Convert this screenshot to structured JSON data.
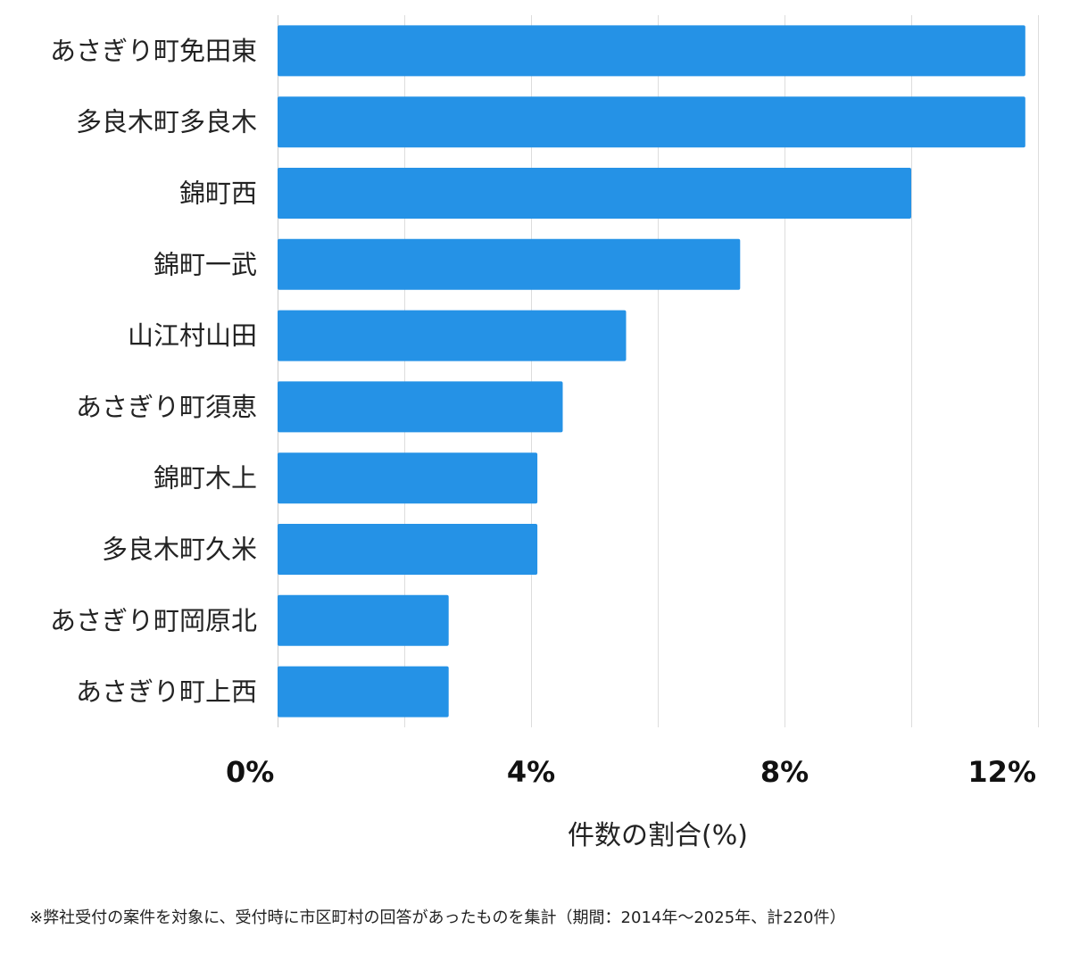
{
  "chart_data": {
    "type": "bar",
    "orientation": "horizontal",
    "categories": [
      "あさぎり町免田東",
      "多良木町多良木",
      "錦町西",
      "錦町一武",
      "山江村山田",
      "あさぎり町須恵",
      "錦町木上",
      "多良木町久米",
      "あさぎり町岡原北",
      "あさぎり町上西"
    ],
    "values": [
      11.8,
      11.8,
      10.0,
      7.3,
      5.5,
      4.5,
      4.1,
      4.1,
      2.7,
      2.7
    ],
    "xlabel": "件数の割合(%)",
    "xlim": [
      0,
      12
    ],
    "xticks": [
      0,
      4,
      8,
      12
    ],
    "xtick_labels": [
      "0%",
      "4%",
      "8%",
      "12%"
    ],
    "grid": true,
    "bar_color": "#2592e6"
  },
  "footnote": "※弊社受付の案件を対象に、受付時に市区町村の回答があったものを集計（期間：2014年～2025年、計220件）"
}
